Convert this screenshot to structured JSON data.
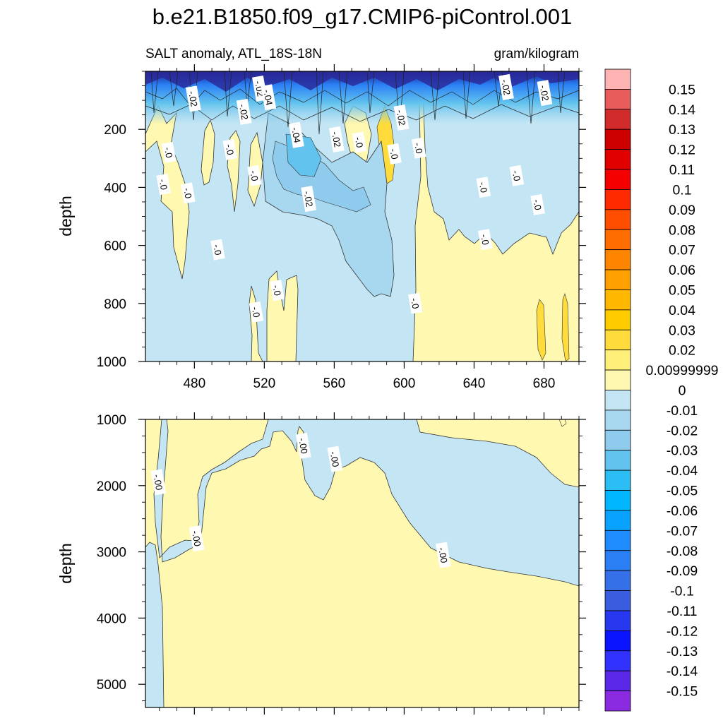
{
  "title": "b.e21.B1850.f09_g17.CMIP6-piControl.001",
  "chart_data": [
    {
      "type": "heatmap",
      "title": "SALT anomaly, ATL_18S-18N",
      "units": "gram/kilogram",
      "ylabel": "depth",
      "xlim": [
        452,
        700
      ],
      "ylim": [
        1000,
        0
      ],
      "xticks": [
        480,
        520,
        560,
        600,
        640,
        680
      ],
      "yticks": [
        200,
        400,
        600,
        800,
        1000
      ],
      "contour_labels": [
        {
          "text": "-.02",
          "x": 479,
          "y": 95
        },
        {
          "text": "-.02",
          "x": 508,
          "y": 140
        },
        {
          "text": "-.02",
          "x": 517,
          "y": 60
        },
        {
          "text": "-.04",
          "x": 522,
          "y": 90
        },
        {
          "text": "-.04",
          "x": 538,
          "y": 220
        },
        {
          "text": "-.02",
          "x": 561,
          "y": 235
        },
        {
          "text": "-.0",
          "x": 574,
          "y": 245
        },
        {
          "text": "-.02",
          "x": 598,
          "y": 160
        },
        {
          "text": "-.02",
          "x": 658,
          "y": 55
        },
        {
          "text": "-.02",
          "x": 680,
          "y": 75
        },
        {
          "text": "-.0",
          "x": 465,
          "y": 280
        },
        {
          "text": "-.0",
          "x": 500,
          "y": 270
        },
        {
          "text": "-.0",
          "x": 462,
          "y": 390
        },
        {
          "text": "-.0",
          "x": 476,
          "y": 420
        },
        {
          "text": "-.0",
          "x": 514,
          "y": 360
        },
        {
          "text": "-.02",
          "x": 545,
          "y": 440
        },
        {
          "text": "-.0",
          "x": 594,
          "y": 285
        },
        {
          "text": "-.0",
          "x": 608,
          "y": 265
        },
        {
          "text": "-.0",
          "x": 645,
          "y": 400
        },
        {
          "text": "-.0",
          "x": 664,
          "y": 360
        },
        {
          "text": "-.0",
          "x": 676,
          "y": 460
        },
        {
          "text": "-.0",
          "x": 646,
          "y": 580
        },
        {
          "text": "-.0",
          "x": 493,
          "y": 615
        },
        {
          "text": "-.0",
          "x": 527,
          "y": 755
        },
        {
          "text": "-.0",
          "x": 515,
          "y": 830
        },
        {
          "text": "-.0",
          "x": 606,
          "y": 800
        }
      ]
    },
    {
      "type": "heatmap",
      "ylabel": "depth",
      "xlim": [
        452,
        700
      ],
      "ylim": [
        5350,
        1000
      ],
      "xticks": [
        480,
        520,
        560,
        600,
        640,
        680
      ],
      "yticks": [
        1000,
        2000,
        3000,
        4000,
        5000
      ],
      "contour_labels": [
        {
          "text": "-.00",
          "x": 459,
          "y": 1950
        },
        {
          "text": "-.00",
          "x": 481,
          "y": 2800
        },
        {
          "text": "-.00",
          "x": 542,
          "y": 1400
        },
        {
          "text": "-.00",
          "x": 560,
          "y": 1600
        },
        {
          "text": "-.00",
          "x": 622,
          "y": 3050
        }
      ]
    }
  ],
  "colorbar": {
    "levels": [
      {
        "label": "0.15",
        "color": "#ffb4b4"
      },
      {
        "label": "0.14",
        "color": "#e85c5c"
      },
      {
        "label": "0.13",
        "color": "#d22b2b"
      },
      {
        "label": "0.12",
        "color": "#cc0000"
      },
      {
        "label": "0.11",
        "color": "#e10000"
      },
      {
        "label": "0.1",
        "color": "#f50000"
      },
      {
        "label": "0.09",
        "color": "#ff2a00"
      },
      {
        "label": "0.08",
        "color": "#ff4e00"
      },
      {
        "label": "0.07",
        "color": "#ff6c00"
      },
      {
        "label": "0.06",
        "color": "#ff8500"
      },
      {
        "label": "0.05",
        "color": "#ffa000"
      },
      {
        "label": "0.04",
        "color": "#ffb700"
      },
      {
        "label": "0.03",
        "color": "#ffcc00"
      },
      {
        "label": "0.02",
        "color": "#ffdc3c"
      },
      {
        "label": "0.00999999",
        "color": "#fff07a"
      },
      {
        "label": "0",
        "color": "#fff8b0"
      },
      {
        "label": "-0.01",
        "color": "#c4e6f4"
      },
      {
        "label": "-0.02",
        "color": "#a8d8ef"
      },
      {
        "label": "-0.03",
        "color": "#8ecbec"
      },
      {
        "label": "-0.04",
        "color": "#62c3ee"
      },
      {
        "label": "-0.05",
        "color": "#2cbdf5"
      },
      {
        "label": "-0.06",
        "color": "#00b6ff"
      },
      {
        "label": "-0.07",
        "color": "#0aa2ff"
      },
      {
        "label": "-0.08",
        "color": "#1e8cff"
      },
      {
        "label": "-0.09",
        "color": "#2a7ff5"
      },
      {
        "label": "-0.1",
        "color": "#3570e8"
      },
      {
        "label": "-0.11",
        "color": "#3a5cdf"
      },
      {
        "label": "-0.12",
        "color": "#2838ee"
      },
      {
        "label": "-0.13",
        "color": "#0a14ff"
      },
      {
        "label": "-0.14",
        "color": "#3232ff"
      },
      {
        "label": "-0.15",
        "color": "#5a28e6"
      },
      {
        "label": "",
        "color": "#8a2be2"
      }
    ]
  }
}
